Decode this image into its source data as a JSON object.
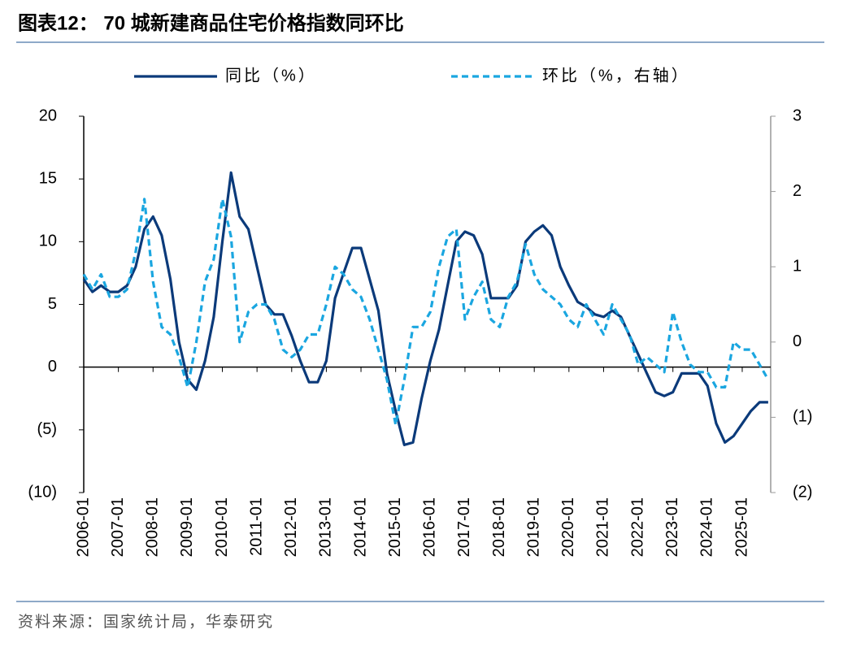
{
  "chart_data": {
    "type": "line",
    "title": "图表12：  70 城新建商品住宅价格指数同环比",
    "source": "资料来源：国家统计局，华泰研究",
    "categories": [
      "2006-01",
      null,
      null,
      null,
      "2007-01",
      null,
      null,
      null,
      "2008-01",
      null,
      null,
      null,
      "2009-01",
      null,
      null,
      null,
      "2010-01",
      null,
      null,
      null,
      "2011-01",
      null,
      null,
      null,
      "2012-01",
      null,
      null,
      null,
      "2013-01",
      null,
      null,
      null,
      "2014-01",
      null,
      null,
      null,
      "2015-01",
      null,
      null,
      null,
      "2016-01",
      null,
      null,
      null,
      "2017-01",
      null,
      null,
      null,
      "2018-01",
      null,
      null,
      null,
      "2019-01",
      null,
      null,
      null,
      "2020-01",
      null,
      null,
      null,
      "2021-01",
      null,
      null,
      null,
      "2022-01",
      null,
      null,
      null,
      "2023-01",
      null,
      null,
      null,
      "2024-01",
      null,
      null,
      null,
      "2025-01",
      null,
      null,
      null
    ],
    "series": [
      {
        "name": "同比（%）",
        "color": "#0b3a7a",
        "dash": false,
        "values": [
          7,
          6,
          6.5,
          6,
          6,
          6.5,
          8,
          11,
          12,
          10.5,
          7,
          2,
          -1,
          -1.8,
          0.5,
          4,
          10,
          15.5,
          12,
          11,
          8,
          5,
          4.2,
          4.2,
          2.5,
          0.5,
          -1.2,
          -1.2,
          0.5,
          5.5,
          7.5,
          9.5,
          9.5,
          7,
          4.5,
          -0.5,
          -3.5,
          -6.2,
          -6,
          -2.5,
          0.5,
          3,
          6.5,
          10,
          10.8,
          10.5,
          9,
          5.5,
          5.5,
          5.5,
          6.5,
          10,
          10.8,
          11.3,
          10.5,
          8,
          6.5,
          5.2,
          4.8,
          4.2,
          4,
          4.5,
          4,
          2.5,
          1,
          -0.5,
          -2,
          -2.3,
          -2,
          -0.5,
          -0.5,
          -0.5,
          -1.5,
          -4.5,
          -6,
          -5.5,
          -4.5,
          -3.5,
          -2.8,
          -2.8
        ]
      },
      {
        "name": "环比（%，右轴）",
        "color": "#1aa6e0",
        "dash": true,
        "axis": "y2",
        "values": [
          0.9,
          0.7,
          0.9,
          0.6,
          0.6,
          0.7,
          1.2,
          1.9,
          0.8,
          0.2,
          0.1,
          -0.2,
          -0.6,
          0,
          0.8,
          1.1,
          1.9,
          1.4,
          0,
          0.4,
          0.5,
          0.5,
          0.3,
          -0.1,
          -0.2,
          -0.1,
          0.1,
          0.1,
          0.5,
          1,
          0.9,
          0.7,
          0.6,
          0.3,
          -0.1,
          -0.5,
          -1.1,
          -0.5,
          0.2,
          0.2,
          0.4,
          1,
          1.4,
          1.5,
          0.3,
          0.6,
          0.8,
          0.3,
          0.2,
          0.6,
          0.8,
          1.3,
          0.9,
          0.7,
          0.6,
          0.5,
          0.3,
          0.2,
          0.5,
          0.3,
          0.1,
          0.5,
          0.3,
          0.1,
          -0.3,
          -0.2,
          -0.3,
          -0.4,
          0.4,
          0,
          -0.3,
          -0.4,
          -0.4,
          -0.6,
          -0.6,
          0,
          -0.1,
          -0.1,
          -0.3,
          -0.5
        ]
      }
    ],
    "ylim": [
      -10,
      20
    ],
    "yticks": [
      {
        "value": -10,
        "label": "(10)"
      },
      {
        "value": -5,
        "label": "(5)"
      },
      0,
      5,
      10,
      15,
      20
    ],
    "y2lim": [
      -2,
      3
    ],
    "y2ticks": [
      {
        "value": -2,
        "label": "(2)"
      },
      {
        "value": -1,
        "label": "(1)"
      },
      0,
      1,
      2,
      3
    ]
  }
}
